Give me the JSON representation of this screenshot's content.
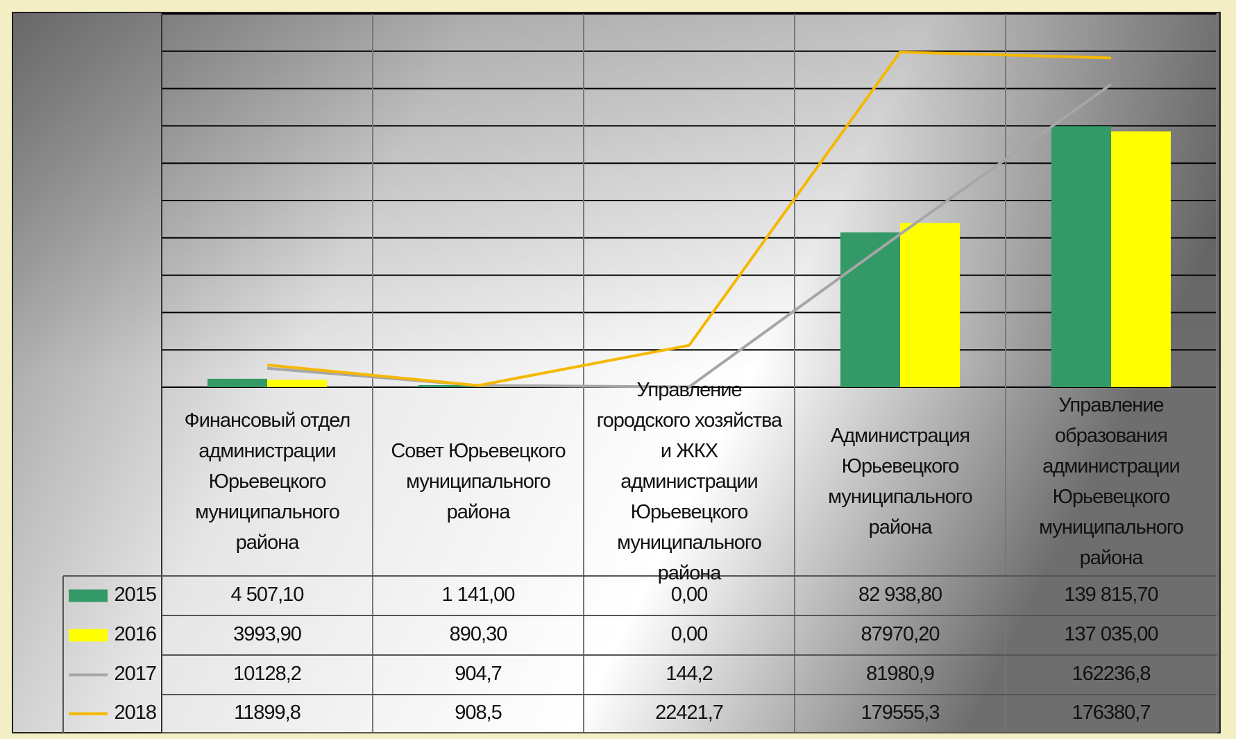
{
  "chart_data": {
    "type": "bar",
    "categories": [
      "Финансовый отдел администрации Юрьевецкого муниципального района",
      "Совет Юрьевецкого муниципального района",
      "Управление городского хозяйства и ЖКХ администрации Юрьевецкого муниципального района",
      "Администрация Юрьевецкого муниципального района",
      "Управление образования администрации Юрьевецкого муниципального района"
    ],
    "series": [
      {
        "name": "2015",
        "type": "bar",
        "color": "#339966",
        "values": [
          4507.1,
          1141,
          0,
          82938.8,
          139815.7
        ],
        "value_labels": [
          "4 507,10",
          "1 141,00",
          "0,00",
          "82 938,80",
          "139 815,70"
        ]
      },
      {
        "name": "2016",
        "type": "bar",
        "color": "#ffff00",
        "values": [
          3993.9,
          890.3,
          0,
          87970.2,
          137035
        ],
        "value_labels": [
          "3993,90",
          "890,30",
          "0,00",
          "87970,20",
          "137 035,00"
        ]
      },
      {
        "name": "2017",
        "type": "line",
        "color": "#a6a6a6",
        "values": [
          10128.2,
          904.7,
          144.2,
          81980.9,
          162236.8
        ],
        "value_labels": [
          "10128,2",
          "904,7",
          "144,2",
          "81980,9",
          "162236,8"
        ]
      },
      {
        "name": "2018",
        "type": "line",
        "color": "#f5b800",
        "values": [
          11899.8,
          908.5,
          22421.7,
          179555.3,
          176380.7
        ],
        "value_labels": [
          "11899,8",
          "908,5",
          "22421,7",
          "179555,3",
          "176380,7"
        ]
      }
    ],
    "ylim": [
      0,
      200000
    ],
    "yticks": [
      0,
      20000,
      40000,
      60000,
      80000,
      100000,
      120000,
      140000,
      160000,
      180000,
      200000
    ],
    "grid": true
  }
}
